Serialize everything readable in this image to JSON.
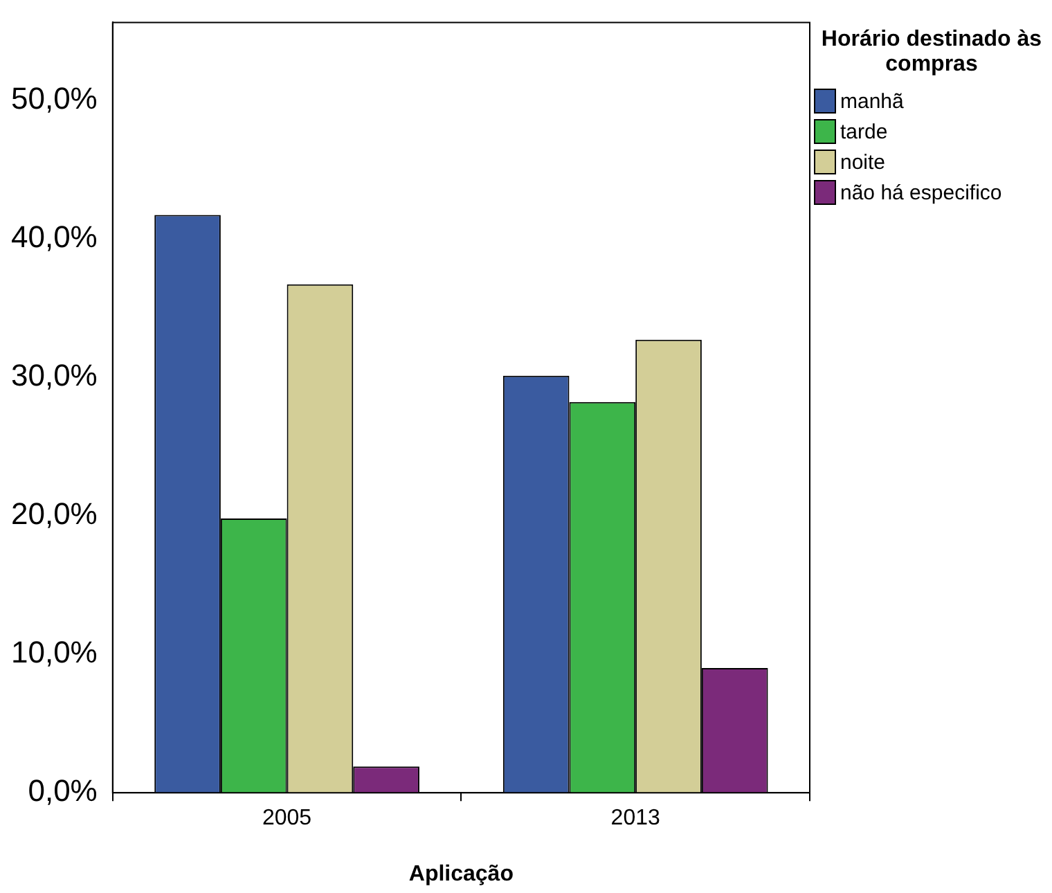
{
  "chart_data": {
    "type": "bar",
    "xlabel": "Aplicação",
    "legend_title": "Horário destinado às compras",
    "categories": [
      "2005",
      "2013"
    ],
    "series": [
      {
        "name": "manhã",
        "color": "#3a5ba0",
        "values": [
          41.7,
          30.1
        ]
      },
      {
        "name": "tarde",
        "color": "#3db54a",
        "values": [
          19.8,
          28.2
        ]
      },
      {
        "name": "noite",
        "color": "#d3ce97",
        "values": [
          36.7,
          32.7
        ]
      },
      {
        "name": "não há especifico",
        "color": "#7b2a7a",
        "values": [
          1.9,
          9.0
        ]
      }
    ],
    "ylim": [
      0,
      55.6
    ],
    "yticks": [
      {
        "value": 0,
        "label": "0,0%"
      },
      {
        "value": 10,
        "label": "10,0%"
      },
      {
        "value": 20,
        "label": "20,0%"
      },
      {
        "value": 30,
        "label": "30,0%"
      },
      {
        "value": 40,
        "label": "40,0%"
      },
      {
        "value": 50,
        "label": "50,0%"
      }
    ],
    "grid": false,
    "legend": "right"
  }
}
